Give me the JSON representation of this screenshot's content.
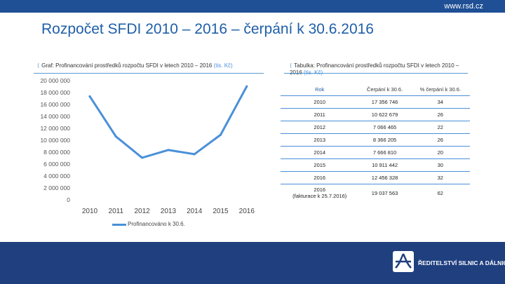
{
  "header": {
    "site": "www.rsd.cz"
  },
  "title": "Rozpočet SFDI 2010 – 2016 – čerpání k 30.6.2016",
  "chart_caption": {
    "prefix": "Graf: Profinancování prostředků rozpočtu SFDI v letech 2010 – 2016 ",
    "unit": "(tis. Kč)"
  },
  "table_caption": {
    "prefix": "Tabulka: Profinancování prostředků rozpočtu SFDI v letech 2010 – 2016 ",
    "unit": "(tis. Kč)"
  },
  "chart_data": {
    "type": "line",
    "categories": [
      "2010",
      "2011",
      "2012",
      "2013",
      "2014",
      "2015",
      "2016"
    ],
    "series": [
      {
        "name": "Profinancováno k 30.6.",
        "values": [
          17356746,
          10622679,
          7066465,
          8366205,
          7666810,
          10911442,
          19037563
        ]
      }
    ],
    "ylim": [
      0,
      20000000
    ],
    "yticks": [
      "0",
      "2 000 000",
      "4 000 000",
      "6 000 000",
      "8 000 000",
      "10 000 000",
      "12 000 000",
      "14 000 000",
      "16 000 000",
      "18 000 000",
      "20 000 000"
    ],
    "grid": false,
    "legend": "bottom",
    "color": "#4a90d9"
  },
  "table": {
    "headers": [
      "Rok",
      "Čerpání k 30.6.",
      "% čerpání k 30.6."
    ],
    "rows": [
      {
        "year": "2010",
        "value": "17 356 746",
        "pct": "34"
      },
      {
        "year": "2011",
        "value": "10 622 679",
        "pct": "26"
      },
      {
        "year": "2012",
        "value": "7 066 465",
        "pct": "22"
      },
      {
        "year": "2013",
        "value": "8 366 205",
        "pct": "26"
      },
      {
        "year": "2014",
        "value": "7 666 810",
        "pct": "20"
      },
      {
        "year": "2015",
        "value": "10 911 442",
        "pct": "30"
      },
      {
        "year": "2016",
        "value": "12 456 328",
        "pct": "32"
      }
    ],
    "last_row": {
      "year": "2016",
      "note": "(fakturace k 25.7.2016)",
      "value": "19 037 563",
      "pct": "62"
    }
  },
  "footer": {
    "org": "ŘEDITELSTVÍ SILNIC A DÁLNIC ČR",
    "accent": "#1f3f7f"
  }
}
